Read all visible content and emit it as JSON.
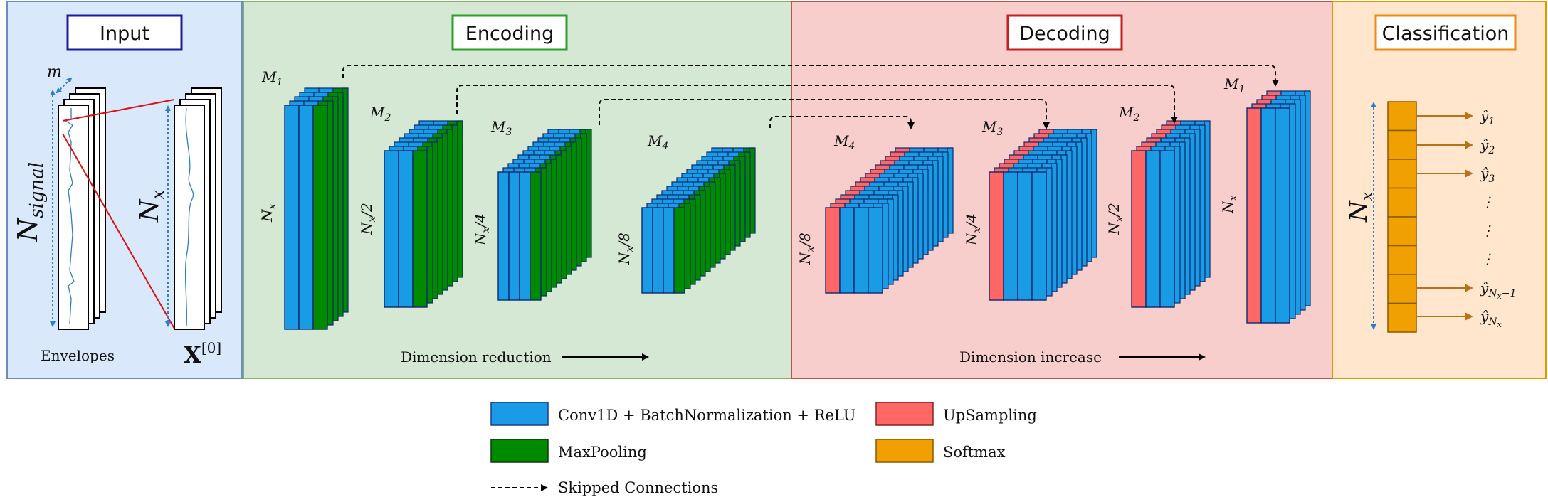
{
  "panels": {
    "input": "Input",
    "encoding": "Encoding",
    "decoding": "Decoding",
    "classification": "Classification"
  },
  "input": {
    "n_signal_main": "N",
    "n_signal_sub": "signal",
    "m_label": "m",
    "nx_main": "N",
    "nx_sub": "x",
    "envelopes_label": "Envelopes",
    "x0_main": "X",
    "x0_sup": "[0]"
  },
  "encoding": {
    "blocks": [
      {
        "m_main": "M",
        "m_sub": "1",
        "height_label": "N",
        "height_sub": "x",
        "height_suffix": ""
      },
      {
        "m_main": "M",
        "m_sub": "2",
        "height_label": "N",
        "height_sub": "x",
        "height_suffix": "/2"
      },
      {
        "m_main": "M",
        "m_sub": "3",
        "height_label": "N",
        "height_sub": "x",
        "height_suffix": "/4"
      },
      {
        "m_main": "M",
        "m_sub": "4",
        "height_label": "N",
        "height_sub": "x",
        "height_suffix": "/8"
      }
    ],
    "caption": "Dimension reduction"
  },
  "decoding": {
    "blocks": [
      {
        "m_main": "M",
        "m_sub": "4",
        "height_label": "N",
        "height_sub": "x",
        "height_suffix": "/8"
      },
      {
        "m_main": "M",
        "m_sub": "3",
        "height_label": "N",
        "height_sub": "x",
        "height_suffix": "/4"
      },
      {
        "m_main": "M",
        "m_sub": "2",
        "height_label": "N",
        "height_sub": "x",
        "height_suffix": "/2"
      },
      {
        "m_main": "M",
        "m_sub": "1",
        "height_label": "N",
        "height_sub": "x",
        "height_suffix": ""
      }
    ],
    "caption": "Dimension increase"
  },
  "classification": {
    "nx_main": "N",
    "nx_sub": "x",
    "outputs": [
      {
        "main": "ŷ",
        "sub": "1"
      },
      {
        "main": "ŷ",
        "sub": "2"
      },
      {
        "main": "ŷ",
        "sub": "3"
      },
      {
        "main": "⋮",
        "sub": ""
      },
      {
        "main": "⋮",
        "sub": ""
      },
      {
        "main": "⋮",
        "sub": ""
      },
      {
        "main": "ŷ",
        "sub": "N",
        "subsub": "x",
        "tail": "−1"
      },
      {
        "main": "ŷ",
        "sub": "N",
        "subsub": "x",
        "tail": ""
      }
    ]
  },
  "legend": {
    "conv": "Conv1D + BatchNormalization + ReLU",
    "maxpool": "MaxPooling",
    "upsampling": "UpSampling",
    "softmax": "Softmax",
    "skip": "Skipped Connections"
  },
  "colors": {
    "conv": "#1a9be6",
    "maxpool": "#008a00",
    "upsampling": "#ff6666",
    "softmax": "#f0a000",
    "input_bg": "#dae8fc",
    "encoding_bg": "#d5e8d4",
    "decoding_bg": "#f8cecc",
    "classification_bg": "#ffe6cc"
  }
}
